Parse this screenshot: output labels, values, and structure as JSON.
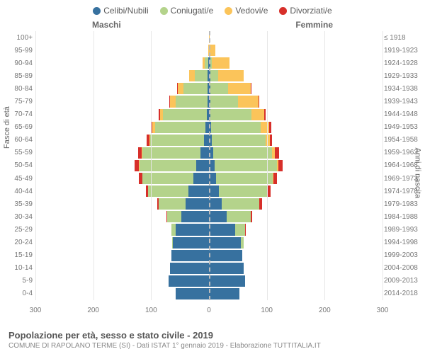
{
  "legend": [
    {
      "label": "Celibi/Nubili",
      "color": "#37719f"
    },
    {
      "label": "Coniugati/e",
      "color": "#b4d38b"
    },
    {
      "label": "Vedovi/e",
      "color": "#fbc45a"
    },
    {
      "label": "Divorziati/e",
      "color": "#d72f2a"
    }
  ],
  "section_labels": {
    "male": "Maschi",
    "female": "Femmine"
  },
  "y_left_label": "Fasce di età",
  "y_right_label": "Anni di nascita",
  "x_ticks": [
    300,
    200,
    100,
    0,
    100,
    200,
    300
  ],
  "x_max": 300,
  "colors": {
    "celibi": "#37719f",
    "coniugati": "#b4d38b",
    "vedovi": "#fbc45a",
    "divorziati": "#d72f2a",
    "grid": "#e6e6e6",
    "center_dash": "#bbbbbb",
    "background": "#ffffff"
  },
  "rows": [
    {
      "age": "100+",
      "year": "≤ 1918",
      "m": {
        "cel": 0,
        "con": 0,
        "ved": 0,
        "div": 0
      },
      "f": {
        "cel": 0,
        "con": 0,
        "ved": 3,
        "div": 0
      }
    },
    {
      "age": "95-99",
      "year": "1919-1923",
      "m": {
        "cel": 0,
        "con": 0,
        "ved": 3,
        "div": 0
      },
      "f": {
        "cel": 0,
        "con": 0,
        "ved": 22,
        "div": 0
      }
    },
    {
      "age": "90-94",
      "year": "1924-1928",
      "m": {
        "cel": 2,
        "con": 12,
        "ved": 8,
        "div": 0
      },
      "f": {
        "cel": 4,
        "con": 6,
        "ved": 60,
        "div": 0
      }
    },
    {
      "age": "85-89",
      "year": "1929-1933",
      "m": {
        "cel": 4,
        "con": 45,
        "ved": 20,
        "div": 0
      },
      "f": {
        "cel": 6,
        "con": 25,
        "ved": 90,
        "div": 0
      }
    },
    {
      "age": "80-84",
      "year": "1934-1938",
      "m": {
        "cel": 4,
        "con": 85,
        "ved": 20,
        "div": 2
      },
      "f": {
        "cel": 5,
        "con": 60,
        "ved": 80,
        "div": 3
      }
    },
    {
      "age": "75-79",
      "year": "1939-1943",
      "m": {
        "cel": 6,
        "con": 110,
        "ved": 18,
        "div": 3
      },
      "f": {
        "cel": 6,
        "con": 95,
        "ved": 70,
        "div": 4
      }
    },
    {
      "age": "70-74",
      "year": "1944-1948",
      "m": {
        "cel": 8,
        "con": 150,
        "ved": 12,
        "div": 4
      },
      "f": {
        "cel": 6,
        "con": 140,
        "ved": 45,
        "div": 5
      }
    },
    {
      "age": "65-69",
      "year": "1949-1953",
      "m": {
        "cel": 12,
        "con": 175,
        "ved": 8,
        "div": 6
      },
      "f": {
        "cel": 8,
        "con": 170,
        "ved": 30,
        "div": 8
      }
    },
    {
      "age": "60-64",
      "year": "1954-1958",
      "m": {
        "cel": 18,
        "con": 185,
        "ved": 4,
        "div": 8
      },
      "f": {
        "cel": 10,
        "con": 185,
        "ved": 15,
        "div": 8
      }
    },
    {
      "age": "55-59",
      "year": "1959-1963",
      "m": {
        "cel": 30,
        "con": 200,
        "ved": 3,
        "div": 12
      },
      "f": {
        "cel": 14,
        "con": 205,
        "ved": 10,
        "div": 14
      }
    },
    {
      "age": "50-54",
      "year": "1964-1968",
      "m": {
        "cel": 45,
        "con": 195,
        "ved": 2,
        "div": 14
      },
      "f": {
        "cel": 20,
        "con": 215,
        "ved": 6,
        "div": 14
      }
    },
    {
      "age": "45-49",
      "year": "1969-1973",
      "m": {
        "cel": 55,
        "con": 175,
        "ved": 1,
        "div": 12
      },
      "f": {
        "cel": 25,
        "con": 195,
        "ved": 3,
        "div": 12
      }
    },
    {
      "age": "40-44",
      "year": "1974-1978",
      "m": {
        "cel": 70,
        "con": 140,
        "ved": 0,
        "div": 8
      },
      "f": {
        "cel": 35,
        "con": 165,
        "ved": 2,
        "div": 10
      }
    },
    {
      "age": "35-39",
      "year": "1979-1983",
      "m": {
        "cel": 80,
        "con": 95,
        "ved": 0,
        "div": 5
      },
      "f": {
        "cel": 45,
        "con": 130,
        "ved": 0,
        "div": 8
      }
    },
    {
      "age": "30-34",
      "year": "1984-1988",
      "m": {
        "cel": 95,
        "con": 50,
        "ved": 0,
        "div": 2
      },
      "f": {
        "cel": 60,
        "con": 85,
        "ved": 0,
        "div": 4
      }
    },
    {
      "age": "25-29",
      "year": "1989-1993",
      "m": {
        "cel": 115,
        "con": 15,
        "ved": 0,
        "div": 0
      },
      "f": {
        "cel": 90,
        "con": 35,
        "ved": 0,
        "div": 2
      }
    },
    {
      "age": "20-24",
      "year": "1994-1998",
      "m": {
        "cel": 125,
        "con": 3,
        "ved": 0,
        "div": 0
      },
      "f": {
        "cel": 110,
        "con": 10,
        "ved": 0,
        "div": 0
      }
    },
    {
      "age": "15-19",
      "year": "1999-2003",
      "m": {
        "cel": 130,
        "con": 0,
        "ved": 0,
        "div": 0
      },
      "f": {
        "cel": 115,
        "con": 0,
        "ved": 0,
        "div": 0
      }
    },
    {
      "age": "10-14",
      "year": "2004-2008",
      "m": {
        "cel": 135,
        "con": 0,
        "ved": 0,
        "div": 0
      },
      "f": {
        "cel": 120,
        "con": 0,
        "ved": 0,
        "div": 0
      }
    },
    {
      "age": "5-9",
      "year": "2009-2013",
      "m": {
        "cel": 140,
        "con": 0,
        "ved": 0,
        "div": 0
      },
      "f": {
        "cel": 125,
        "con": 0,
        "ved": 0,
        "div": 0
      }
    },
    {
      "age": "0-4",
      "year": "2014-2018",
      "m": {
        "cel": 115,
        "con": 0,
        "ved": 0,
        "div": 0
      },
      "f": {
        "cel": 105,
        "con": 0,
        "ved": 0,
        "div": 0
      }
    }
  ],
  "footer": {
    "title": "Popolazione per età, sesso e stato civile - 2019",
    "sub": "COMUNE DI RAPOLANO TERME (SI) - Dati ISTAT 1° gennaio 2019 - Elaborazione TUTTITALIA.IT"
  }
}
